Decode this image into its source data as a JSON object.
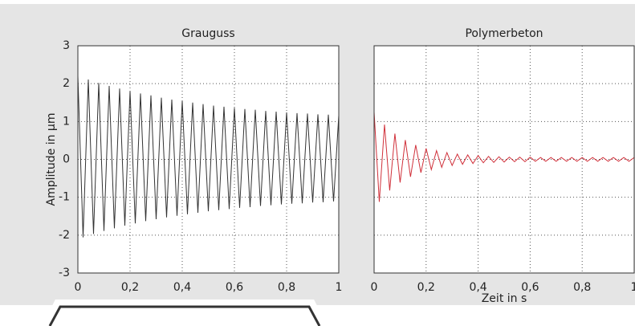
{
  "chart_data": [
    {
      "type": "line",
      "title": "Grauguss",
      "ylabel": "Amplitude in µm",
      "x": [
        0,
        0.02,
        0.04,
        0.06,
        0.08,
        0.1,
        0.12,
        0.14,
        0.16,
        0.18,
        0.2,
        0.22,
        0.24,
        0.26,
        0.28,
        0.3,
        0.32,
        0.34,
        0.36,
        0.38,
        0.4,
        0.42,
        0.44,
        0.46,
        0.48,
        0.5,
        0.52,
        0.54,
        0.56,
        0.58,
        0.6,
        0.62,
        0.64,
        0.66,
        0.68,
        0.7,
        0.72,
        0.74,
        0.76,
        0.78,
        0.8,
        0.82,
        0.84,
        0.86,
        0.88,
        0.9,
        0.92,
        0.94,
        0.96,
        0.98,
        1
      ],
      "values": [
        2.2,
        -2.06,
        2.11,
        -1.97,
        2.02,
        -1.89,
        1.94,
        -1.82,
        1.87,
        -1.75,
        1.8,
        -1.69,
        1.74,
        -1.63,
        1.69,
        -1.58,
        1.63,
        -1.53,
        1.58,
        -1.49,
        1.54,
        -1.45,
        1.5,
        -1.41,
        1.46,
        -1.37,
        1.42,
        -1.34,
        1.39,
        -1.31,
        1.36,
        -1.28,
        1.33,
        -1.26,
        1.31,
        -1.23,
        1.28,
        -1.21,
        1.26,
        -1.19,
        1.24,
        -1.17,
        1.22,
        -1.16,
        1.21,
        -1.14,
        1.19,
        -1.13,
        1.18,
        -1.11,
        1.16
      ],
      "color": "#333333",
      "xlim": [
        0,
        1
      ],
      "xticks": [
        0,
        {
          "value": 0.2,
          "label": "0,2"
        },
        {
          "value": 0.4,
          "label": "0,4"
        },
        {
          "value": 0.6,
          "label": "0,6"
        },
        {
          "value": 0.8,
          "label": "0,8"
        },
        1
      ],
      "ylim": [
        -3,
        3
      ],
      "yticks": [
        -3,
        -2,
        -1,
        0,
        1,
        2,
        3
      ],
      "y_tick_labels": true,
      "grid": true
    },
    {
      "type": "line",
      "title": "Polymerbeton",
      "xlabel": "Zeit in s",
      "x": [
        0,
        0.02,
        0.04,
        0.06,
        0.08,
        0.1,
        0.12,
        0.14,
        0.16,
        0.18,
        0.2,
        0.22,
        0.24,
        0.26,
        0.28,
        0.3,
        0.32,
        0.34,
        0.36,
        0.38,
        0.4,
        0.42,
        0.44,
        0.46,
        0.48,
        0.5,
        0.52,
        0.54,
        0.56,
        0.58,
        0.6,
        0.62,
        0.64,
        0.66,
        0.68,
        0.7,
        0.72,
        0.74,
        0.76,
        0.78,
        0.8,
        0.82,
        0.84,
        0.86,
        0.88,
        0.9,
        0.92,
        0.94,
        0.96,
        0.98,
        1
      ],
      "values": [
        1.25,
        -1.12,
        0.92,
        -0.82,
        0.68,
        -0.61,
        0.51,
        -0.46,
        0.38,
        -0.35,
        0.29,
        -0.27,
        0.23,
        -0.21,
        0.18,
        -0.16,
        0.14,
        -0.13,
        0.12,
        -0.11,
        0.1,
        -0.09,
        0.08,
        -0.08,
        0.07,
        -0.07,
        0.06,
        -0.06,
        0.06,
        -0.06,
        0.06,
        -0.05,
        0.05,
        -0.05,
        0.05,
        -0.05,
        0.05,
        -0.05,
        0.05,
        -0.05,
        0.05,
        -0.05,
        0.05,
        -0.05,
        0.05,
        -0.05,
        0.05,
        -0.05,
        0.05,
        -0.05,
        0.05
      ],
      "color": "#d0303a",
      "xlim": [
        0,
        1
      ],
      "xticks": [
        0,
        {
          "value": 0.2,
          "label": "0,2"
        },
        {
          "value": 0.4,
          "label": "0,4"
        },
        {
          "value": 0.6,
          "label": "0,6"
        },
        {
          "value": 0.8,
          "label": "0,8"
        },
        1
      ],
      "ylim": [
        -3,
        3
      ],
      "yticks": [
        -3,
        -2,
        -1,
        0,
        1,
        2,
        3
      ],
      "y_tick_labels": false,
      "grid": true
    }
  ]
}
